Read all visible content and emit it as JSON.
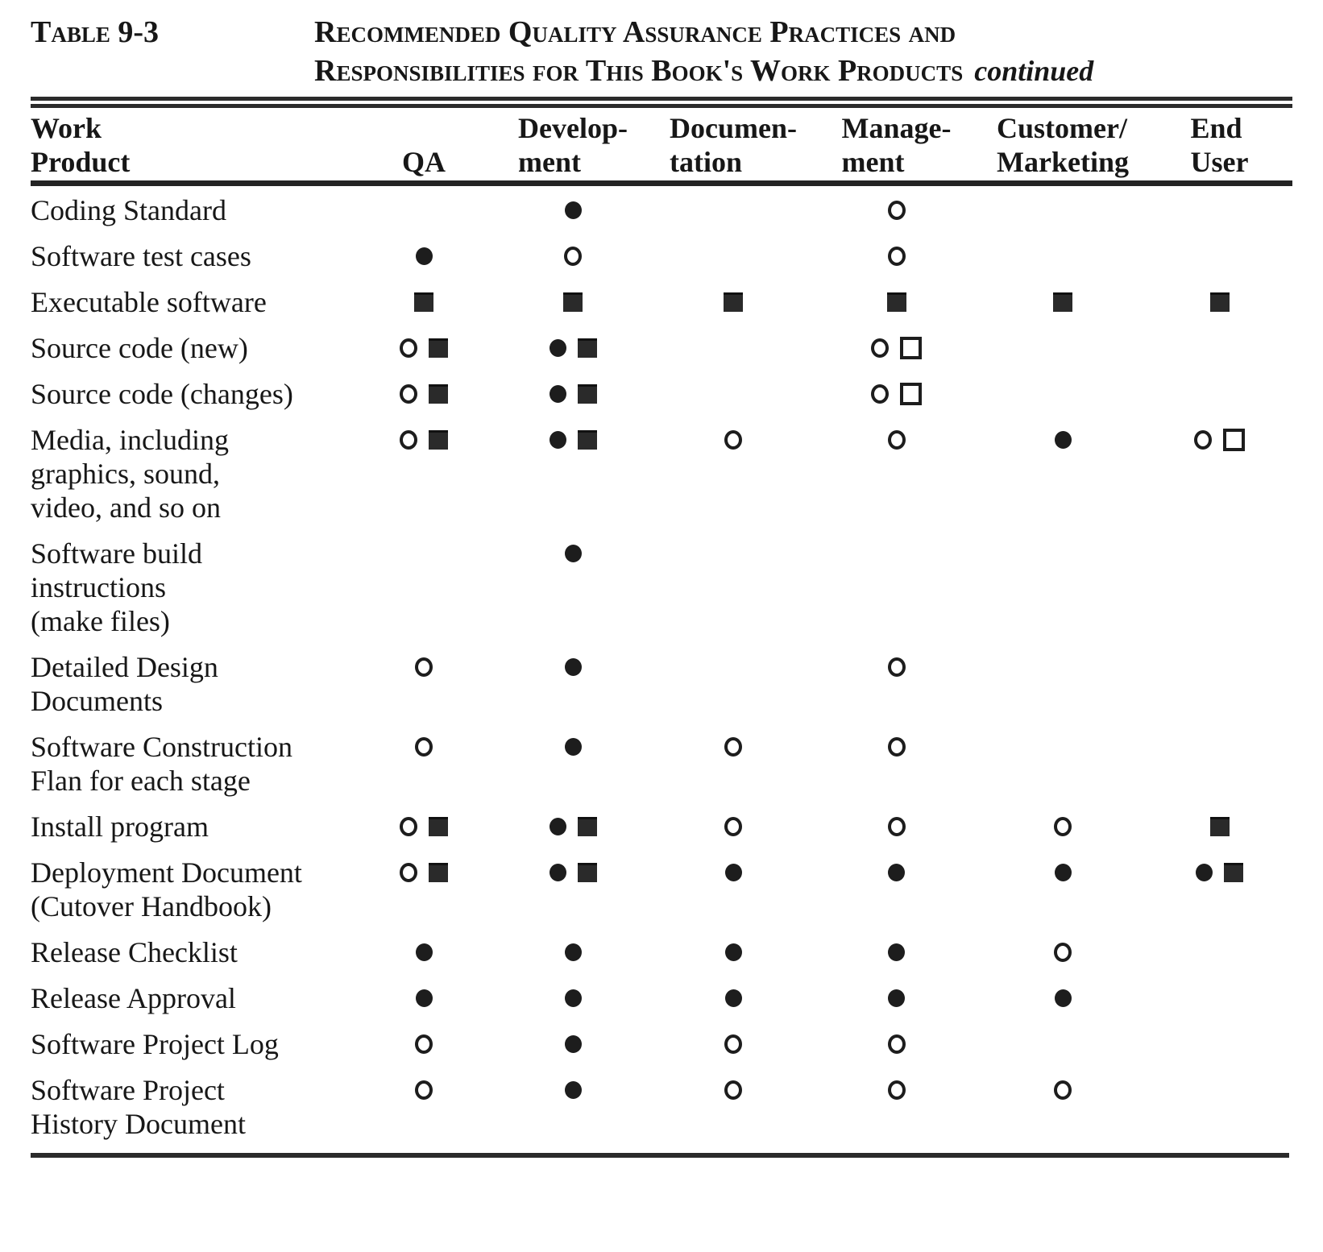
{
  "caption": {
    "label": "Table 9-3",
    "title_line1": "Recommended Quality Assurance Practices and",
    "title_line2": "Responsibilities for This Book's Work Products",
    "title_continued": "continued"
  },
  "symbols": {
    "filled-circle": "●",
    "open-circle": "○",
    "filled-square": "■",
    "open-square": "□"
  },
  "ink_color": "#1d1d1d",
  "table": {
    "columns": [
      {
        "key": "work_product",
        "lines": [
          "Work",
          "Product"
        ]
      },
      {
        "key": "qa",
        "lines": [
          "QA"
        ]
      },
      {
        "key": "development",
        "lines": [
          "Develop-",
          "ment"
        ]
      },
      {
        "key": "documentation",
        "lines": [
          "Documen-",
          "tation"
        ]
      },
      {
        "key": "management",
        "lines": [
          "Manage-",
          "ment"
        ]
      },
      {
        "key": "customer_marketing",
        "lines": [
          "Customer/",
          "Marketing"
        ]
      },
      {
        "key": "end_user",
        "lines": [
          "End",
          "User"
        ]
      }
    ],
    "symbol_column_keys": [
      "qa",
      "development",
      "documentation",
      "management",
      "customer_marketing",
      "end_user"
    ],
    "rows": [
      {
        "work_product": [
          "Coding Standard"
        ],
        "qa": [],
        "development": [
          "filled-circle"
        ],
        "documentation": [],
        "management": [
          "open-circle"
        ],
        "customer_marketing": [],
        "end_user": []
      },
      {
        "work_product": [
          "Software test cases"
        ],
        "qa": [
          "filled-circle"
        ],
        "development": [
          "open-circle"
        ],
        "documentation": [],
        "management": [
          "open-circle"
        ],
        "customer_marketing": [],
        "end_user": []
      },
      {
        "work_product": [
          "Executable software"
        ],
        "qa": [
          "filled-square"
        ],
        "development": [
          "filled-square"
        ],
        "documentation": [
          "filled-square"
        ],
        "management": [
          "filled-square"
        ],
        "customer_marketing": [
          "filled-square"
        ],
        "end_user": [
          "filled-square"
        ]
      },
      {
        "work_product": [
          "Source code (new)"
        ],
        "qa": [
          "open-circle",
          "filled-square"
        ],
        "development": [
          "filled-circle",
          "filled-square"
        ],
        "documentation": [],
        "management": [
          "open-circle",
          "open-square"
        ],
        "customer_marketing": [],
        "end_user": []
      },
      {
        "work_product": [
          "Source code (changes)"
        ],
        "qa": [
          "open-circle",
          "filled-square"
        ],
        "development": [
          "filled-circle",
          "filled-square"
        ],
        "documentation": [],
        "management": [
          "open-circle",
          "open-square"
        ],
        "customer_marketing": [],
        "end_user": []
      },
      {
        "work_product": [
          "Media, including",
          "graphics, sound,",
          "video, and so on"
        ],
        "qa": [
          "open-circle",
          "filled-square"
        ],
        "development": [
          "filled-circle",
          "filled-square"
        ],
        "documentation": [
          "open-circle"
        ],
        "management": [
          "open-circle"
        ],
        "customer_marketing": [
          "filled-circle"
        ],
        "end_user": [
          "open-circle",
          "open-square"
        ]
      },
      {
        "work_product": [
          "Software build",
          "instructions",
          "(make files)"
        ],
        "qa": [],
        "development": [
          "filled-circle"
        ],
        "documentation": [],
        "management": [],
        "customer_marketing": [],
        "end_user": []
      },
      {
        "work_product": [
          "Detailed Design",
          "Documents"
        ],
        "qa": [
          "open-circle"
        ],
        "development": [
          "filled-circle"
        ],
        "documentation": [],
        "management": [
          "open-circle"
        ],
        "customer_marketing": [],
        "end_user": []
      },
      {
        "work_product": [
          "Software Construction",
          "Flan for each stage"
        ],
        "qa": [
          "open-circle"
        ],
        "development": [
          "filled-circle"
        ],
        "documentation": [
          "open-circle"
        ],
        "management": [
          "open-circle"
        ],
        "customer_marketing": [],
        "end_user": []
      },
      {
        "work_product": [
          "Install program"
        ],
        "qa": [
          "open-circle",
          "filled-square"
        ],
        "development": [
          "filled-circle",
          "filled-square"
        ],
        "documentation": [
          "open-circle"
        ],
        "management": [
          "open-circle"
        ],
        "customer_marketing": [
          "open-circle"
        ],
        "end_user": [
          "filled-square"
        ]
      },
      {
        "work_product": [
          "Deployment Document",
          "(Cutover Handbook)"
        ],
        "qa": [
          "open-circle",
          "filled-square"
        ],
        "development": [
          "filled-circle",
          "filled-square"
        ],
        "documentation": [
          "filled-circle"
        ],
        "management": [
          "filled-circle"
        ],
        "customer_marketing": [
          "filled-circle"
        ],
        "end_user": [
          "filled-circle",
          "filled-square"
        ]
      },
      {
        "work_product": [
          "Release Checklist"
        ],
        "qa": [
          "filled-circle"
        ],
        "development": [
          "filled-circle"
        ],
        "documentation": [
          "filled-circle"
        ],
        "management": [
          "filled-circle"
        ],
        "customer_marketing": [
          "open-circle"
        ],
        "end_user": []
      },
      {
        "work_product": [
          "Release Approval"
        ],
        "qa": [
          "filled-circle"
        ],
        "development": [
          "filled-circle"
        ],
        "documentation": [
          "filled-circle"
        ],
        "management": [
          "filled-circle"
        ],
        "customer_marketing": [
          "filled-circle"
        ],
        "end_user": []
      },
      {
        "work_product": [
          "Software Project Log"
        ],
        "qa": [
          "open-circle"
        ],
        "development": [
          "filled-circle"
        ],
        "documentation": [
          "open-circle"
        ],
        "management": [
          "open-circle"
        ],
        "customer_marketing": [],
        "end_user": []
      },
      {
        "work_product": [
          "Software Project",
          "History Document"
        ],
        "qa": [
          "open-circle"
        ],
        "development": [
          "filled-circle"
        ],
        "documentation": [
          "open-circle"
        ],
        "management": [
          "open-circle"
        ],
        "customer_marketing": [
          "open-circle"
        ],
        "end_user": []
      }
    ]
  }
}
